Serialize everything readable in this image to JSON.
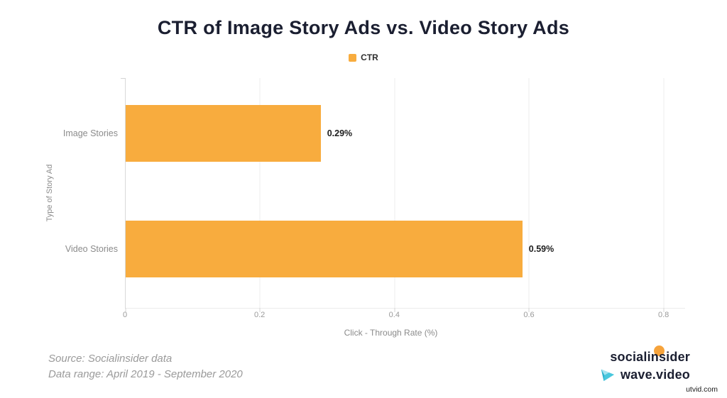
{
  "chart_data": {
    "type": "bar",
    "orientation": "horizontal",
    "title": "CTR of Image Story Ads vs. Video Story Ads",
    "legend": {
      "label": "CTR",
      "color": "#f8ac3e",
      "position": "top"
    },
    "categories": [
      "Image Stories",
      "Video Stories"
    ],
    "values": [
      0.29,
      0.59
    ],
    "value_labels": [
      "0.29%",
      "0.59%"
    ],
    "xlabel": "Click - Through Rate (%)",
    "ylabel": "Type of Story Ad",
    "xlim": [
      0,
      0.832
    ],
    "xticks": [
      0,
      0.2,
      0.4,
      0.6,
      0.8
    ],
    "xtick_labels": [
      "0",
      "0.2",
      "0.4",
      "0.6",
      "0.8"
    ],
    "grid": true,
    "bar_color": "#f8ac3e",
    "title_color": "#1b1f31"
  },
  "footer": {
    "source_line1": "Source: Socialinsider data",
    "source_line2": "Data range: April 2019 - September 2020",
    "logos": {
      "socialinsider_text": "socialinsider",
      "wave_text": "wave.video"
    },
    "watermark": "utvid.com"
  }
}
